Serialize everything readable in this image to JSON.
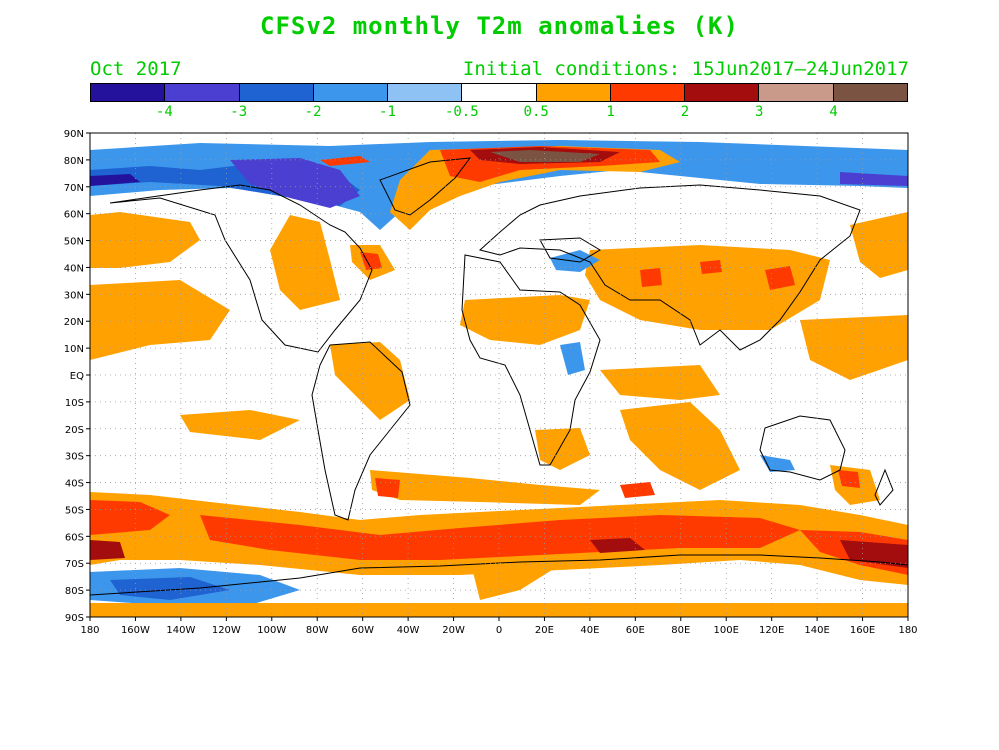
{
  "title": "CFSv2 monthly T2m anomalies (K)",
  "valid_month": "Oct 2017",
  "init_conditions": "Initial conditions: 15Jun2017–24Jun2017",
  "colors": {
    "text": "#00cc00",
    "coast": "#000000",
    "grid": "#9a9a9a",
    "bins": [
      "#24119c",
      "#4b3fd1",
      "#1f62d2",
      "#3c97ec",
      "#8ec2f5",
      "#ffffff",
      "#ffa100",
      "#ff3a00",
      "#a30d0d",
      "#c9998a",
      "#7b5343"
    ]
  },
  "colorbar_labels": [
    "-4",
    "-3",
    "-2",
    "-1",
    "-0.5",
    "0.5",
    "1",
    "2",
    "3",
    "4"
  ],
  "axes": {
    "lat_labels": [
      "90N",
      "80N",
      "70N",
      "60N",
      "50N",
      "40N",
      "30N",
      "20N",
      "10N",
      "EQ",
      "10S",
      "20S",
      "30S",
      "40S",
      "50S",
      "60S",
      "70S",
      "80S",
      "90S"
    ],
    "lon_labels": [
      "180",
      "160W",
      "140W",
      "120W",
      "100W",
      "80W",
      "60W",
      "40W",
      "20W",
      "0",
      "20E",
      "40E",
      "60E",
      "80E",
      "100E",
      "120E",
      "140E",
      "160E",
      "180"
    ]
  }
}
